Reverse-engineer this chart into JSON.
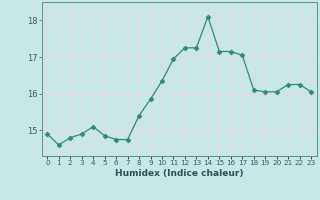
{
  "x": [
    0,
    1,
    2,
    3,
    4,
    5,
    6,
    7,
    8,
    9,
    10,
    11,
    12,
    13,
    14,
    15,
    16,
    17,
    18,
    19,
    20,
    21,
    22,
    23
  ],
  "y": [
    14.9,
    14.6,
    14.8,
    14.9,
    15.1,
    14.85,
    14.75,
    14.75,
    15.4,
    15.85,
    16.35,
    16.95,
    17.25,
    17.25,
    18.1,
    17.15,
    17.15,
    17.05,
    16.1,
    16.05,
    16.05,
    16.25,
    16.25,
    16.05
  ],
  "line_color": "#2e8b72",
  "marker": "D",
  "marker_size": 2.5,
  "bg_color": "#c8e8e8",
  "grid_color": "#e8d8d8",
  "xlabel": "Humidex (Indice chaleur)",
  "xlim": [
    -0.5,
    23.5
  ],
  "ylim": [
    14.3,
    18.5
  ],
  "yticks": [
    15,
    16,
    17,
    18
  ],
  "xticks": [
    0,
    1,
    2,
    3,
    4,
    5,
    6,
    7,
    8,
    9,
    10,
    11,
    12,
    13,
    14,
    15,
    16,
    17,
    18,
    19,
    20,
    21,
    22,
    23
  ],
  "tick_color": "#2e6060",
  "xlabel_color": "#2e5050",
  "spine_color": "#5a9090"
}
